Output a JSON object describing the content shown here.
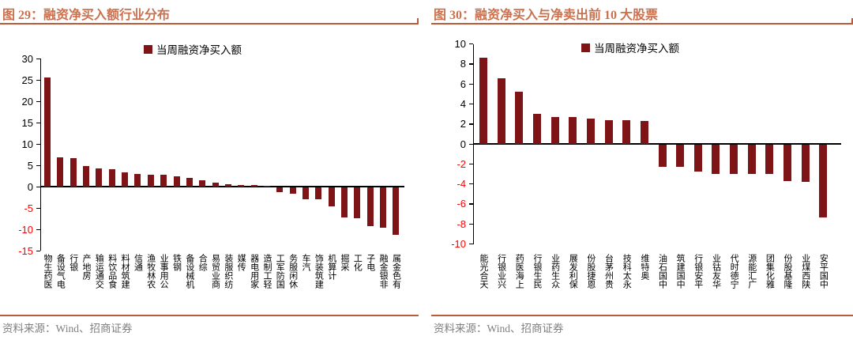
{
  "colors": {
    "accent_rule": "#B95C3C",
    "title_text": "#C9714F",
    "bar_fill": "#7E1416",
    "negative_tick": "#FF0000",
    "positive_tick": "#000000",
    "axis": "#000000",
    "source_text": "#7F7F7F"
  },
  "chart_data": [
    {
      "type": "bar",
      "title": "图 29：融资净买入额行业分布",
      "legend": "当周融资净买入额",
      "legend_position": "top-center",
      "source": "资料来源：Wind、招商证券",
      "grid": false,
      "ylim": [
        -15,
        30
      ],
      "ytick_step": 5,
      "xlabel": "",
      "ylabel": "",
      "categories": [
        "医药生物",
        "电气设备",
        "银行",
        "房地产",
        "交通运输",
        "食品饮料",
        "建筑材料",
        "通信",
        "农林牧渔",
        "公用事业",
        "钢铁",
        "机械设备",
        "综合",
        "商业贸易",
        "纺织服装",
        "传媒",
        "家用电器",
        "轻工制造",
        "国防军工",
        "休闲服务",
        "汽车",
        "建筑装饰",
        "计算机",
        "采掘",
        "化工",
        "电子",
        "非银金融",
        "有色金属"
      ],
      "values": [
        25.5,
        6.8,
        6.6,
        4.9,
        4.3,
        4.1,
        3.3,
        2.9,
        2.8,
        2.7,
        2.5,
        2.0,
        1.5,
        0.9,
        0.6,
        0.4,
        0.3,
        0.1,
        -1.1,
        -1.5,
        -2.8,
        -2.7,
        -4.5,
        -7.1,
        -7.2,
        -9.1,
        -9.5,
        -11.2
      ]
    },
    {
      "type": "bar",
      "title": "图 30：融资净买入与净卖出前 10 大股票",
      "legend": "当周融资净买入额",
      "legend_position": "top-center",
      "source": "资料来源：Wind、招商证券",
      "grid": false,
      "ylim": [
        -10,
        10
      ],
      "ytick_step": 2,
      "xlabel": "",
      "ylabel": "",
      "categories": [
        "天合光能",
        "兴业银行",
        "上海医药",
        "民生银行",
        "众生药业",
        "保利发展",
        "恩捷股份",
        "贵州茅台",
        "永太科技",
        "奥特维",
        "中国石油",
        "中国建筑",
        "平安银行",
        "华友钴业",
        "宁德时代",
        "广汇能源",
        "雅化集团",
        "隆基股份",
        "陕西煤业",
        "中国平安"
      ],
      "values": [
        8.6,
        6.6,
        5.2,
        3.0,
        2.7,
        2.7,
        2.5,
        2.4,
        2.4,
        2.3,
        -2.2,
        -2.2,
        -2.7,
        -2.9,
        -2.9,
        -2.9,
        -2.9,
        -3.6,
        -3.7,
        -7.3
      ]
    }
  ]
}
